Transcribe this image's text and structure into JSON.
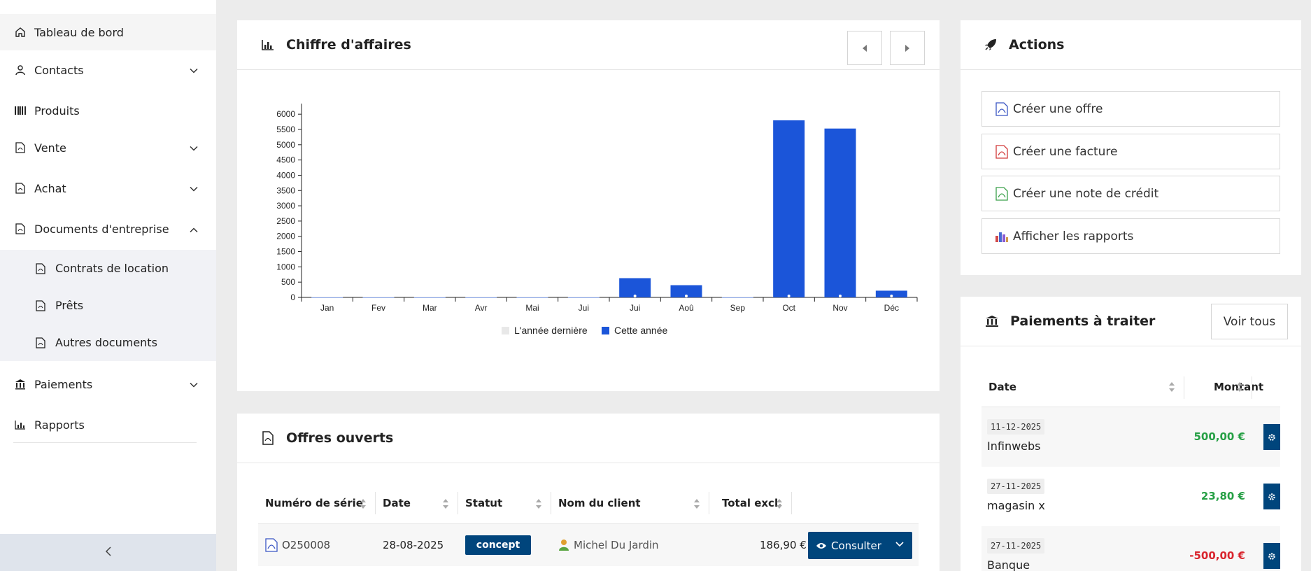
{
  "sidebar": {
    "items": [
      {
        "label": "Tableau de bord",
        "icon": "home-icon"
      },
      {
        "label": "Contacts",
        "icon": "user-icon"
      },
      {
        "label": "Produits",
        "icon": "barcode-icon"
      },
      {
        "label": "Vente",
        "icon": "document-icon"
      },
      {
        "label": "Achat",
        "icon": "document-icon"
      },
      {
        "label": "Documents d'entreprise",
        "icon": "document-icon"
      },
      {
        "label": "Contrats de location",
        "icon": "document-icon"
      },
      {
        "label": "Prêts",
        "icon": "document-icon"
      },
      {
        "label": "Autres documents",
        "icon": "document-icon"
      },
      {
        "label": "Paiements",
        "icon": "bank-icon"
      },
      {
        "label": "Rapports",
        "icon": "chart-icon"
      }
    ],
    "collapse_icon": "chevron-left-icon"
  },
  "revenue": {
    "title": "Chiffre d'affaires",
    "icon": "bar-chart-icon",
    "prev_icon": "caret-left-icon",
    "next_icon": "caret-right-icon"
  },
  "chart_data": {
    "type": "bar",
    "categories": [
      "Jan",
      "Fev",
      "Mar",
      "Avr",
      "Mai",
      "Jui",
      "Jui",
      "Aoû",
      "Sep",
      "Oct",
      "Nov",
      "Déc"
    ],
    "series": [
      {
        "name": "L'année dernière",
        "values": [
          0,
          0,
          0,
          0,
          0,
          0,
          0,
          0,
          0,
          0,
          0,
          0
        ],
        "color": "#e8e8e8"
      },
      {
        "name": "Cette année",
        "values": [
          0,
          0,
          0,
          0,
          0,
          0,
          630,
          400,
          0,
          5800,
          5530,
          220
        ],
        "color": "#1b55d9"
      }
    ],
    "yticks": [
      0,
      500,
      1000,
      1500,
      2000,
      2500,
      3000,
      3500,
      4000,
      4500,
      5000,
      5500,
      6000
    ],
    "ylim": [
      0,
      6300
    ],
    "legend_position": "bottom-center",
    "grid": false
  },
  "actions": {
    "title": "Actions",
    "icon": "rocket-icon",
    "buttons": [
      {
        "label": "Créer une offre",
        "icon": "pdf-blue-icon"
      },
      {
        "label": "Créer une facture",
        "icon": "pdf-red-icon"
      },
      {
        "label": "Créer une note de crédit",
        "icon": "pdf-green-icon"
      },
      {
        "label": "Afficher les rapports",
        "icon": "report-chart-icon"
      }
    ]
  },
  "offers": {
    "title": "Offres ouverts",
    "icon": "document-icon",
    "columns": [
      "Numéro de série",
      "Date",
      "Statut",
      "Nom du client",
      "Total excl."
    ],
    "rows": [
      {
        "serial": "O250008",
        "date": "28-08-2025",
        "status": "concept",
        "client": "Michel Du Jardin",
        "total": "186,90 €",
        "action": "Consulter"
      }
    ]
  },
  "payments": {
    "title": "Paiements à traiter",
    "icon": "bank-icon",
    "see_all": "Voir tous",
    "columns": [
      "Date",
      "Montant"
    ],
    "rows": [
      {
        "date": "11-12-2025",
        "name": "Infinwebs",
        "amount": "500,00 €",
        "color": "#27a046"
      },
      {
        "date": "27-11-2025",
        "name": "magasin x",
        "amount": "23,80 €",
        "color": "#27a046"
      },
      {
        "date": "27-11-2025",
        "name": "Banque",
        "amount": "-500,00 €",
        "color": "#d9262f"
      }
    ]
  }
}
